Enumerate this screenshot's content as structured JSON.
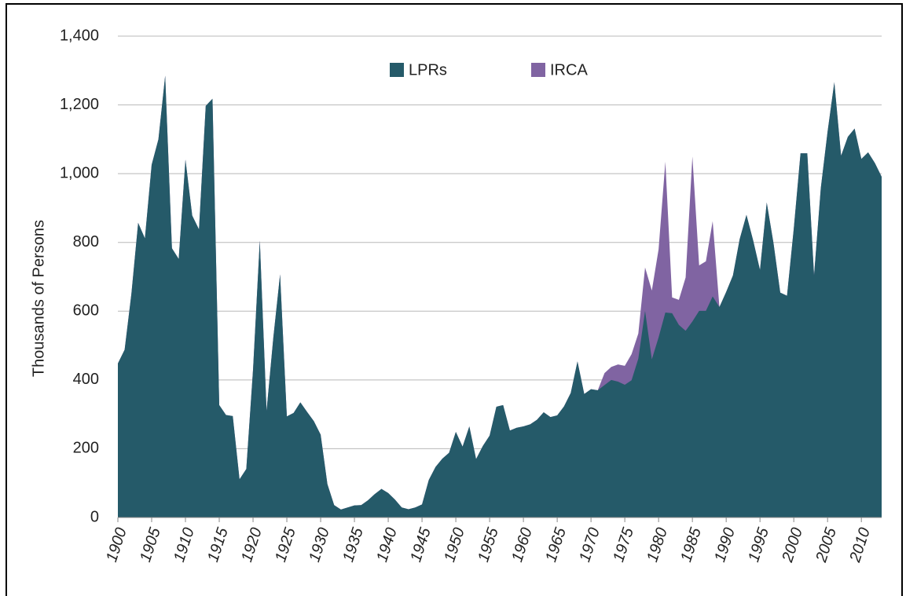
{
  "chart_data": {
    "type": "stacked-area",
    "y_label": "Thousands of Persons",
    "x": [
      1900,
      1901,
      1902,
      1903,
      1904,
      1905,
      1906,
      1907,
      1908,
      1909,
      1910,
      1911,
      1912,
      1913,
      1914,
      1915,
      1916,
      1917,
      1918,
      1919,
      1920,
      1921,
      1922,
      1923,
      1924,
      1925,
      1926,
      1927,
      1928,
      1929,
      1930,
      1931,
      1932,
      1933,
      1934,
      1935,
      1936,
      1937,
      1938,
      1939,
      1940,
      1941,
      1942,
      1943,
      1944,
      1945,
      1946,
      1947,
      1948,
      1949,
      1950,
      1951,
      1952,
      1953,
      1954,
      1955,
      1956,
      1957,
      1958,
      1959,
      1960,
      1961,
      1962,
      1963,
      1964,
      1965,
      1966,
      1967,
      1968,
      1969,
      1970,
      1971,
      1972,
      1973,
      1974,
      1975,
      1976,
      1977,
      1978,
      1979,
      1980,
      1981,
      1982,
      1983,
      1984,
      1985,
      1986,
      1987,
      1988,
      1989,
      1990,
      1991,
      1992,
      1993,
      1994,
      1995,
      1996,
      1997,
      1998,
      1999,
      2000,
      2001,
      2002,
      2003,
      2004,
      2005,
      2006,
      2007,
      2008,
      2009,
      2010,
      2011,
      2012,
      2013
    ],
    "series": [
      {
        "name": "LPRs",
        "color": "#255a69",
        "values": [
          448,
          488,
          650,
          857,
          812,
          1026,
          1100,
          1285,
          783,
          752,
          1041,
          878,
          838,
          1197,
          1218,
          327,
          298,
          295,
          111,
          141,
          430,
          805,
          310,
          523,
          707,
          294,
          304,
          335,
          307,
          280,
          241,
          97,
          36,
          23,
          29,
          35,
          36,
          50,
          68,
          83,
          71,
          52,
          29,
          24,
          29,
          38,
          109,
          147,
          171,
          188,
          249,
          206,
          265,
          170,
          208,
          238,
          322,
          327,
          253,
          261,
          265,
          271,
          284,
          306,
          292,
          297,
          323,
          362,
          454,
          359,
          373,
          370,
          385,
          400,
          395,
          386,
          399,
          462,
          601,
          460,
          524,
          596,
          594,
          560,
          543,
          570,
          601,
          601,
          643,
          612,
          656,
          704,
          810,
          880,
          805,
          720,
          916,
          798,
          654,
          645,
          840,
          1059,
          1059,
          704,
          958,
          1122,
          1266,
          1052,
          1107,
          1131,
          1043,
          1062,
          1031,
          991
        ]
      },
      {
        "name": "IRCA",
        "color": "#8064a2",
        "values": [
          0,
          0,
          0,
          0,
          0,
          0,
          0,
          0,
          0,
          0,
          0,
          0,
          0,
          0,
          0,
          0,
          0,
          0,
          0,
          0,
          0,
          0,
          0,
          0,
          0,
          0,
          0,
          0,
          0,
          0,
          0,
          0,
          0,
          0,
          0,
          0,
          0,
          0,
          0,
          0,
          0,
          0,
          0,
          0,
          0,
          0,
          0,
          0,
          0,
          0,
          0,
          0,
          0,
          0,
          0,
          0,
          0,
          0,
          0,
          0,
          0,
          0,
          0,
          0,
          0,
          0,
          0,
          0,
          0,
          0,
          0,
          0,
          35,
          38,
          50,
          55,
          76,
          73,
          126,
          200,
          256,
          439,
          46,
          73,
          155,
          480,
          132,
          144,
          219,
          0,
          0,
          0,
          0,
          0,
          0,
          0,
          0,
          0,
          0,
          0,
          0,
          0,
          0,
          0,
          0,
          0,
          0,
          0,
          0,
          0,
          0,
          0,
          0,
          0
        ]
      }
    ],
    "xlim": [
      1900,
      2013
    ],
    "xticks": [
      1900,
      1905,
      1910,
      1915,
      1920,
      1925,
      1930,
      1935,
      1940,
      1945,
      1950,
      1955,
      1960,
      1965,
      1970,
      1975,
      1980,
      1985,
      1990,
      1995,
      2000,
      2005,
      2010
    ],
    "ylim": [
      0,
      1400
    ],
    "yticks": [
      0,
      200,
      400,
      600,
      800,
      {
        "value": 1000,
        "label": "1,000"
      },
      {
        "value": 1200,
        "label": "1,200"
      },
      {
        "value": 1400,
        "label": "1,400"
      }
    ],
    "grid": true
  }
}
